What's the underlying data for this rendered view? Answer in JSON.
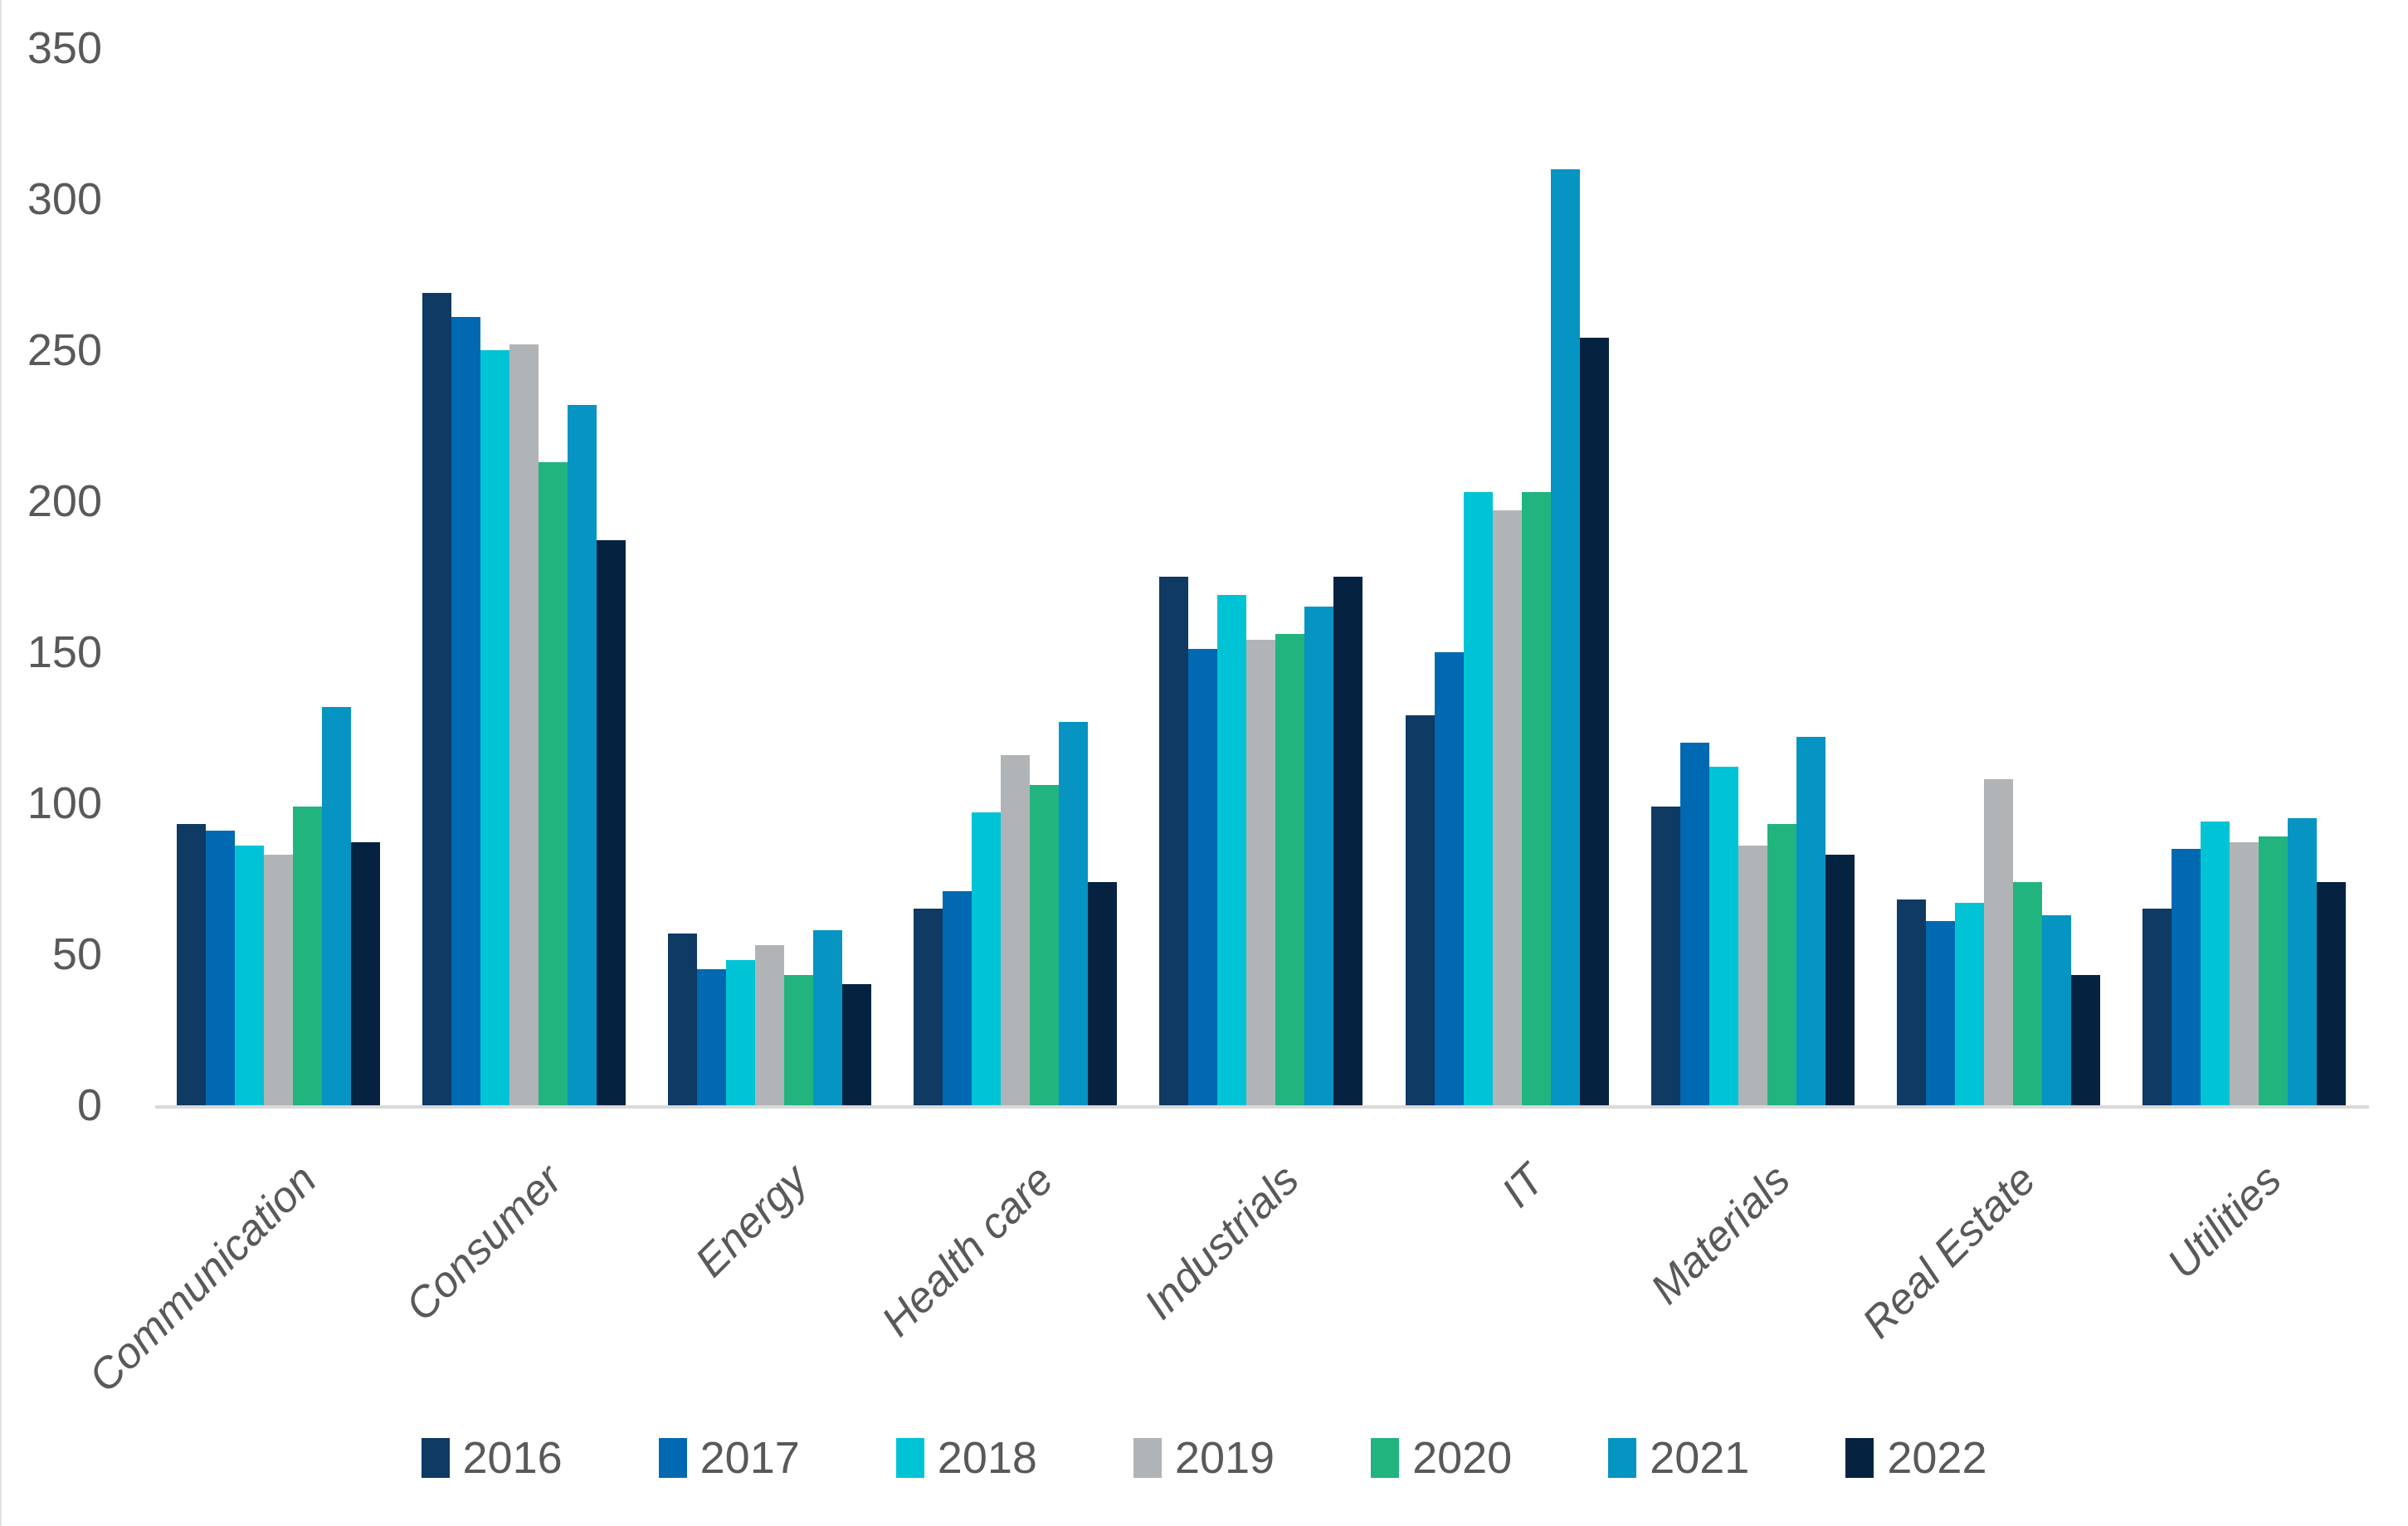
{
  "chart_data": {
    "type": "bar",
    "title": "",
    "categories": [
      "Communication",
      "Consumer",
      "Energy",
      "Health care",
      "Industrials",
      "IT",
      "Materials",
      "Real Estate",
      "Utilities"
    ],
    "series": [
      {
        "name": "2016",
        "color": "#0e3a63",
        "values": [
          93,
          269,
          57,
          65,
          175,
          129,
          99,
          68,
          65
        ]
      },
      {
        "name": "2017",
        "color": "#0069b1",
        "values": [
          91,
          261,
          45,
          71,
          151,
          150,
          120,
          61,
          85
        ]
      },
      {
        "name": "2018",
        "color": "#00c4d5",
        "values": [
          86,
          250,
          48,
          97,
          169,
          203,
          112,
          67,
          94
        ]
      },
      {
        "name": "2019",
        "color": "#b1b4b6",
        "values": [
          83,
          252,
          53,
          116,
          154,
          197,
          86,
          108,
          87
        ]
      },
      {
        "name": "2020",
        "color": "#22b47e",
        "values": [
          99,
          213,
          43,
          106,
          156,
          203,
          93,
          74,
          89
        ]
      },
      {
        "name": "2021",
        "color": "#0694c3",
        "values": [
          132,
          232,
          58,
          127,
          165,
          310,
          122,
          63,
          95
        ]
      },
      {
        "name": "2022",
        "color": "#052340",
        "values": [
          87,
          187,
          40,
          74,
          175,
          254,
          83,
          43,
          74
        ]
      }
    ],
    "xlabel": "",
    "ylabel": "",
    "ylim": [
      0,
      350
    ],
    "yticks": [
      0,
      50,
      100,
      150,
      200,
      250,
      300,
      350
    ],
    "grid": false,
    "legend_position": "bottom",
    "axis_line_color": "#d9d9d9",
    "text_color": "#595959",
    "background": "#ffffff"
  }
}
